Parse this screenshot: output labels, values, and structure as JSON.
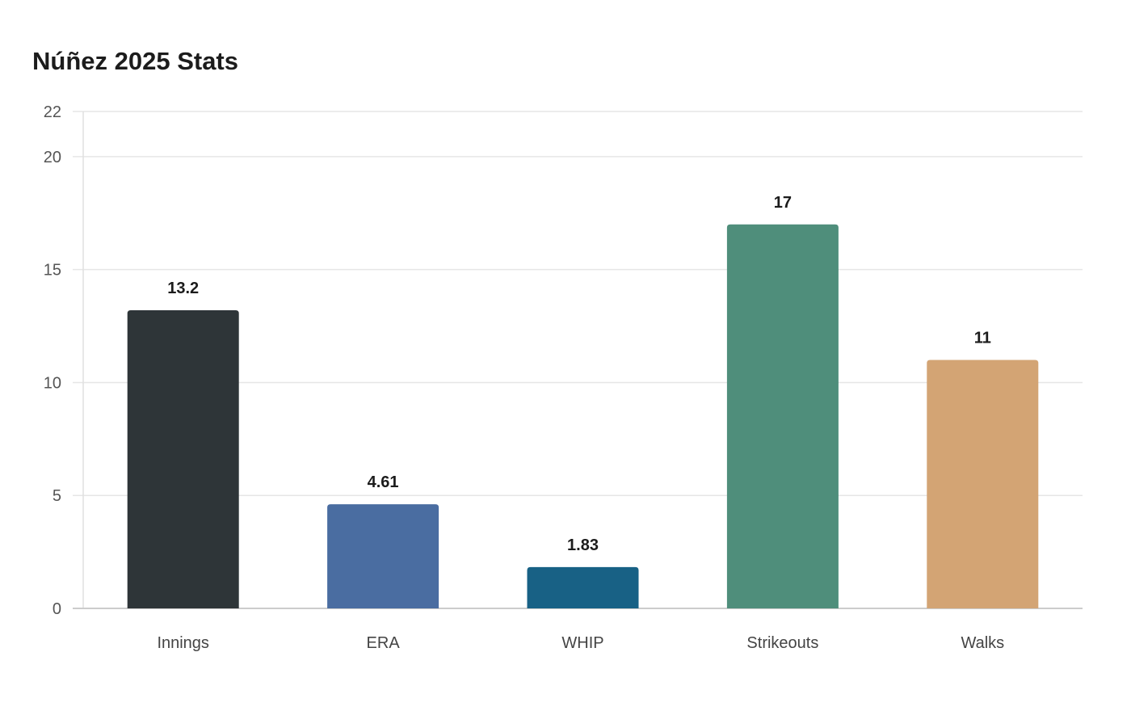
{
  "chart_data": {
    "type": "bar",
    "title": "Núñez 2025 Stats",
    "xlabel": "",
    "ylabel": "",
    "categories": [
      "Innings",
      "ERA",
      "WHIP",
      "Strikeouts",
      "Walks"
    ],
    "values": [
      13.2,
      4.61,
      1.83,
      17,
      11
    ],
    "value_labels": [
      "13.2",
      "4.61",
      "1.83",
      "17",
      "11"
    ],
    "colors": [
      "#2e3538",
      "#4a6da1",
      "#186185",
      "#4f8e7b",
      "#d3a474"
    ],
    "ylim": [
      0,
      22
    ],
    "yticks": [
      0,
      5,
      10,
      15,
      20,
      22
    ],
    "grid": true,
    "legend": "none"
  }
}
